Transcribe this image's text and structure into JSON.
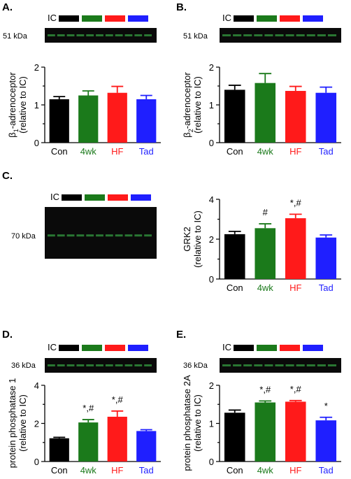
{
  "colors": {
    "Con": "#000000",
    "4wk": "#1b7a1b",
    "HF": "#ff1a1a",
    "Tad": "#1f1fff"
  },
  "blot_legend_label": "IC",
  "chart_data": [
    {
      "panel": "A.",
      "type": "bar",
      "blot_size": "51 kDa",
      "ylabel": "β1-adrenoceptor",
      "ylabel_sub": "(relative to IC)",
      "categories": [
        "Con",
        "4wk",
        "HF",
        "Tad"
      ],
      "values": [
        1.15,
        1.25,
        1.32,
        1.15
      ],
      "errors": [
        0.07,
        0.12,
        0.17,
        0.1
      ],
      "significance": [
        "",
        "",
        "",
        ""
      ],
      "ylim": [
        0,
        2
      ],
      "yticks": [
        "0",
        "1",
        "2"
      ]
    },
    {
      "panel": "B.",
      "type": "bar",
      "blot_size": "51 kDa",
      "ylabel": "β2-adrenoceptor",
      "ylabel_sub": "(relative to IC)",
      "categories": [
        "Con",
        "4wk",
        "HF",
        "Tad"
      ],
      "values": [
        1.4,
        1.58,
        1.37,
        1.32
      ],
      "errors": [
        0.12,
        0.25,
        0.12,
        0.15
      ],
      "significance": [
        "",
        "",
        "",
        ""
      ],
      "ylim": [
        0,
        2
      ],
      "yticks": [
        "0",
        "1",
        "2"
      ]
    },
    {
      "panel": "C.",
      "type": "bar",
      "blot_size": "70 kDa",
      "ylabel": "GRK2",
      "ylabel_sub": "(relative to IC)",
      "categories": [
        "Con",
        "4wk",
        "HF",
        "Tad"
      ],
      "values": [
        2.25,
        2.55,
        3.05,
        2.08
      ],
      "errors": [
        0.14,
        0.22,
        0.2,
        0.13
      ],
      "significance": [
        "",
        "#",
        "*,#",
        ""
      ],
      "ylim": [
        0,
        4
      ],
      "yticks": [
        "0",
        "2",
        "4"
      ]
    },
    {
      "panel": "D.",
      "type": "bar",
      "blot_size": "36 kDa",
      "ylabel": "protein phosphatase 1",
      "ylabel_sub": "(relative to IC)",
      "categories": [
        "Con",
        "4wk",
        "HF",
        "Tad"
      ],
      "values": [
        1.22,
        2.05,
        2.35,
        1.6
      ],
      "errors": [
        0.05,
        0.15,
        0.3,
        0.07
      ],
      "significance": [
        "",
        "*,#",
        "*,#",
        ""
      ],
      "ylim": [
        0,
        4
      ],
      "yticks": [
        "0",
        "2",
        "4"
      ]
    },
    {
      "panel": "E.",
      "type": "bar",
      "blot_size": "36 kDa",
      "ylabel": "protein phosphatase 2A",
      "ylabel_sub": "(relative to IC)",
      "categories": [
        "Con",
        "4wk",
        "HF",
        "Tad"
      ],
      "values": [
        1.28,
        1.55,
        1.57,
        1.08
      ],
      "errors": [
        0.07,
        0.04,
        0.03,
        0.08
      ],
      "significance": [
        "",
        "*,#",
        "*,#",
        "*"
      ],
      "ylim": [
        0,
        2
      ],
      "yticks": [
        "0",
        "1",
        "2"
      ]
    }
  ]
}
